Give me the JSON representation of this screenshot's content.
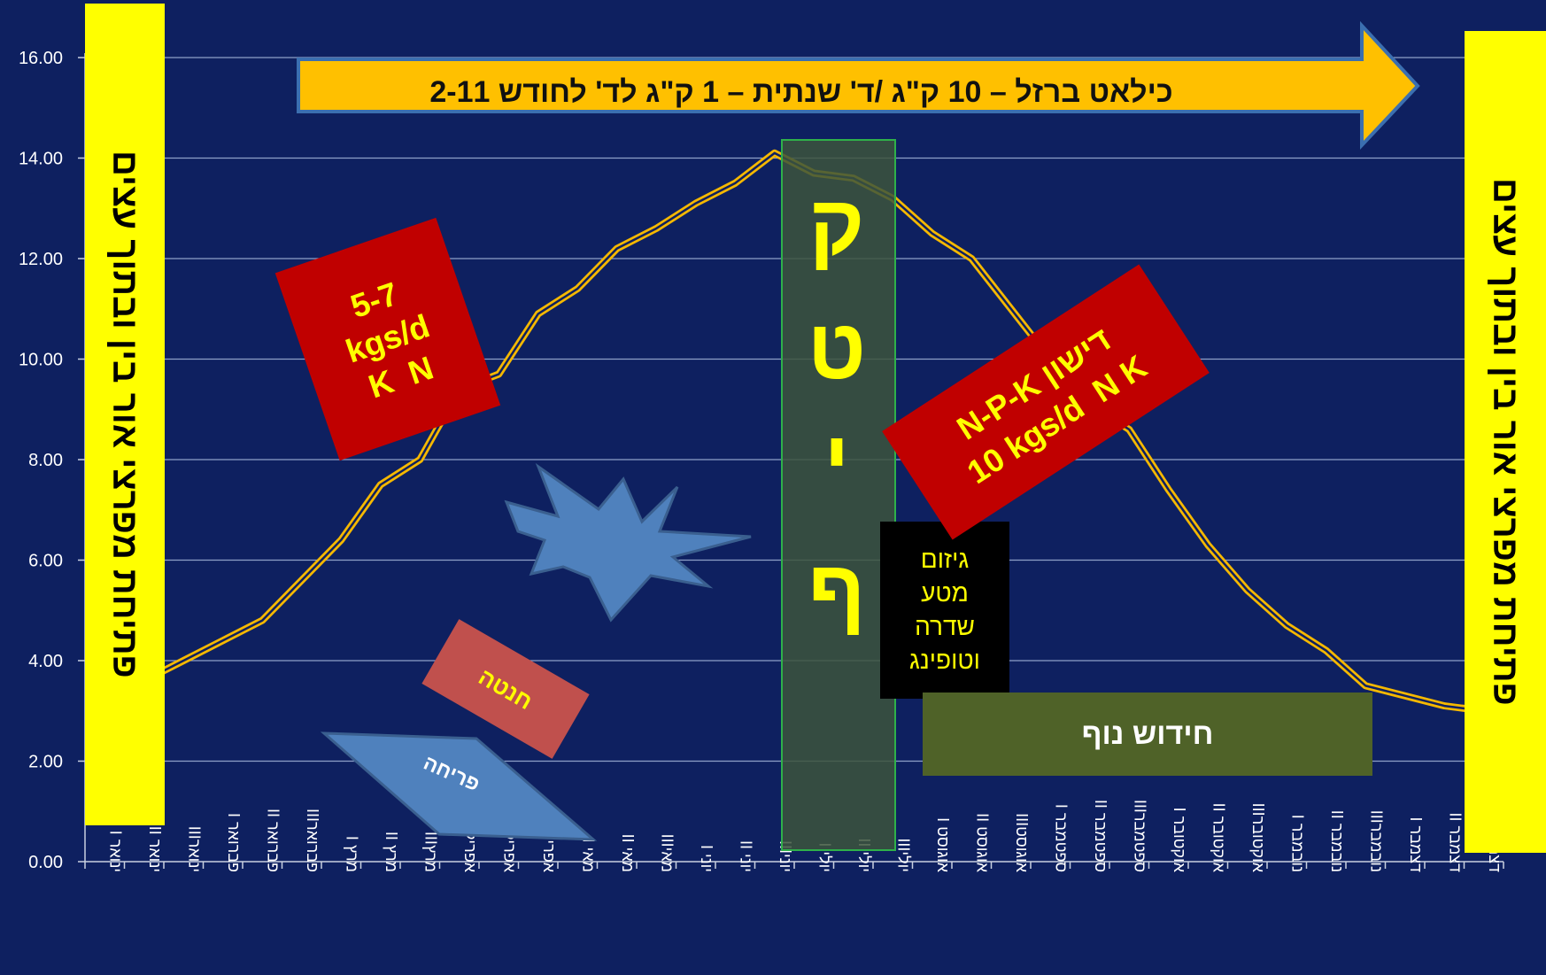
{
  "chart_data": {
    "type": "line",
    "categories": [
      "ינואר I",
      "ינואר II",
      "ינוארIII",
      "פברואר I",
      "פברואר II",
      "פברוארIII",
      "מרץ I",
      "מרץ II",
      "מרץIII",
      "אפריל I",
      "אפריל II",
      "אפרילIII",
      "מאי I",
      "מאי II",
      "מאיIII",
      "יוני I",
      "יוני II",
      "יוניIII",
      "יולי I",
      "יולי II",
      "יוליIII",
      "אוגוסט I",
      "אוגוסט II",
      "אוגוסטIII",
      "ספטמבר I",
      "ספטמבר II",
      "ספטמברIII",
      "אוקטובר I",
      "אוקטובר II",
      "אוקטוברIII",
      "נובמבר I",
      "נובמבר II",
      "נובמברIII",
      "דצמבר I",
      "דצמבר II",
      "דצמברIII"
    ],
    "series": [
      {
        "values": [
          3.2,
          3.6,
          4.0,
          4.4,
          4.8,
          5.6,
          6.4,
          7.5,
          8.0,
          9.4,
          9.7,
          10.9,
          11.4,
          12.2,
          12.6,
          13.1,
          13.5,
          14.1,
          13.7,
          13.6,
          13.2,
          12.5,
          12.0,
          11.0,
          10.0,
          9.1,
          8.6,
          7.4,
          6.3,
          5.4,
          4.7,
          4.2,
          3.5,
          3.3,
          3.1,
          3.0
        ]
      }
    ],
    "yticks": [
      "0.00",
      "2.00",
      "4.00",
      "6.00",
      "8.00",
      "10.00",
      "12.00",
      "14.00",
      "16.00"
    ],
    "ylim": [
      0,
      16
    ],
    "grid": true,
    "colors": {
      "background": "#0e2060",
      "line": "#f5b800",
      "grid": "#8ea0c8"
    }
  },
  "side_labels": {
    "left": "פתיחת מפרצי אור בין ובתוך עצים",
    "right": "פתיחת מפרצי אור בין ובתוך עצים"
  },
  "banner": "כילאט ברזל – 10 ק\"ג /ד' שנתית – 1 ק\"ג לד' לחודש 2-11",
  "harvest": {
    "letters": [
      "ק",
      "ט",
      "י",
      "ף"
    ]
  },
  "black_box": {
    "lines": [
      "גיזום",
      "מטע",
      "שדרה",
      "וטופינג"
    ]
  },
  "green_box": "חידוש נוף",
  "red_box_1": {
    "lines": [
      "5-7",
      "kgs/d",
      "K  N"
    ]
  },
  "red_box_2": {
    "lines": [
      "דישון N-P-K",
      "10 kgs/d  N K"
    ]
  },
  "hanata": "חנטה",
  "flowering": "פריחה"
}
